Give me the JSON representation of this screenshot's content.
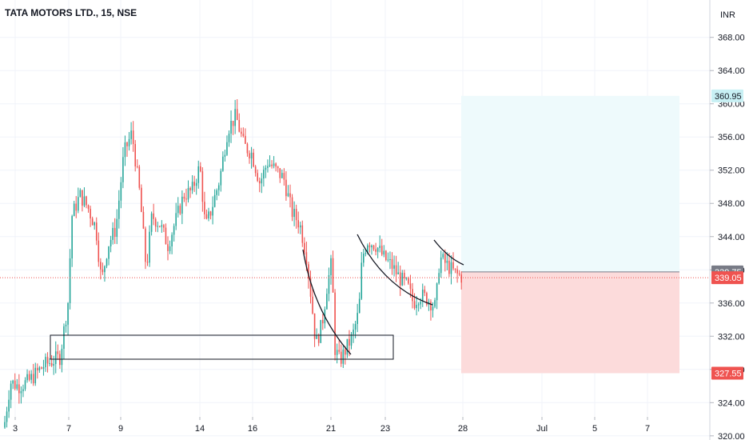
{
  "chart_title": "TATA MOTORS LTD., 15, NSE",
  "chart_data": {
    "type": "candlestick",
    "title": "TATA MOTORS LTD., 15, NSE",
    "currency": "INR",
    "ylim": [
      319.5,
      372.5
    ],
    "y_ticks": [
      320,
      324,
      328,
      332,
      336,
      340,
      344,
      348,
      352,
      356,
      360,
      364,
      368
    ],
    "x_ticks": [
      "3",
      "7",
      "9",
      "14",
      "16",
      "21",
      "23",
      "28",
      "Jul",
      "5",
      "7"
    ],
    "price_labels": [
      {
        "value": 360.95,
        "label": "360.95",
        "role": "target"
      },
      {
        "value": 339.75,
        "label": "339.75",
        "role": "entry"
      },
      {
        "value": 339.05,
        "label": "339.05",
        "role": "last-price"
      },
      {
        "value": 327.55,
        "label": "327.55",
        "role": "stop"
      }
    ],
    "anchors": [
      {
        "x": 0,
        "y": 321.0
      },
      {
        "x": 8,
        "y": 326.5
      },
      {
        "x": 18,
        "y": 326.0
      },
      {
        "x": 30,
        "y": 326.5
      },
      {
        "x": 50,
        "y": 328.5
      },
      {
        "x": 70,
        "y": 329.5
      },
      {
        "x": 80,
        "y": 336.0
      },
      {
        "x": 85,
        "y": 346.5
      },
      {
        "x": 95,
        "y": 349.0
      },
      {
        "x": 105,
        "y": 347.5
      },
      {
        "x": 115,
        "y": 345.0
      },
      {
        "x": 122,
        "y": 338.5
      },
      {
        "x": 130,
        "y": 343.0
      },
      {
        "x": 140,
        "y": 345.0
      },
      {
        "x": 150,
        "y": 354.0
      },
      {
        "x": 160,
        "y": 356.5
      },
      {
        "x": 170,
        "y": 349.0
      },
      {
        "x": 178,
        "y": 340.0
      },
      {
        "x": 185,
        "y": 346.5
      },
      {
        "x": 195,
        "y": 345.5
      },
      {
        "x": 205,
        "y": 343.0
      },
      {
        "x": 215,
        "y": 346.0
      },
      {
        "x": 225,
        "y": 349.0
      },
      {
        "x": 235,
        "y": 349.5
      },
      {
        "x": 245,
        "y": 352.5
      },
      {
        "x": 252,
        "y": 345.0
      },
      {
        "x": 260,
        "y": 347.5
      },
      {
        "x": 270,
        "y": 351.0
      },
      {
        "x": 280,
        "y": 357.0
      },
      {
        "x": 290,
        "y": 358.5
      },
      {
        "x": 300,
        "y": 355.0
      },
      {
        "x": 310,
        "y": 354.0
      },
      {
        "x": 320,
        "y": 350.5
      },
      {
        "x": 330,
        "y": 353.0
      },
      {
        "x": 340,
        "y": 352.0
      },
      {
        "x": 350,
        "y": 351.0
      },
      {
        "x": 360,
        "y": 347.0
      },
      {
        "x": 370,
        "y": 345.5
      },
      {
        "x": 378,
        "y": 342.0
      },
      {
        "x": 385,
        "y": 336.0
      },
      {
        "x": 390,
        "y": 331.0
      },
      {
        "x": 398,
        "y": 333.5
      },
      {
        "x": 404,
        "y": 338.0
      },
      {
        "x": 410,
        "y": 341.0
      },
      {
        "x": 414,
        "y": 330.5
      },
      {
        "x": 420,
        "y": 329.0
      },
      {
        "x": 428,
        "y": 330.5
      },
      {
        "x": 436,
        "y": 332.0
      },
      {
        "x": 444,
        "y": 335.0
      },
      {
        "x": 448,
        "y": 341.5
      },
      {
        "x": 455,
        "y": 343.5
      },
      {
        "x": 465,
        "y": 343.0
      },
      {
        "x": 475,
        "y": 341.5
      },
      {
        "x": 485,
        "y": 340.5
      },
      {
        "x": 495,
        "y": 339.0
      },
      {
        "x": 505,
        "y": 338.0
      },
      {
        "x": 512,
        "y": 336.0
      },
      {
        "x": 520,
        "y": 337.0
      },
      {
        "x": 530,
        "y": 336.5
      },
      {
        "x": 540,
        "y": 335.5
      },
      {
        "x": 545,
        "y": 341.5
      },
      {
        "x": 555,
        "y": 340.5
      },
      {
        "x": 565,
        "y": 339.5
      },
      {
        "x": 575,
        "y": 339.05
      }
    ]
  },
  "colors": {
    "up": "#26a69a",
    "down": "#ef5350",
    "grid": "#f0f3fa",
    "axis_text": "#131722",
    "profit_zone": "#eefafc",
    "loss_zone": "#fcdbdb",
    "target_tag": "#c8f0f4",
    "entry_tag": "#787b86",
    "price_tag": "#ef5350",
    "stop_tag": "#ef5350",
    "dotted_line": "#ef5350"
  }
}
